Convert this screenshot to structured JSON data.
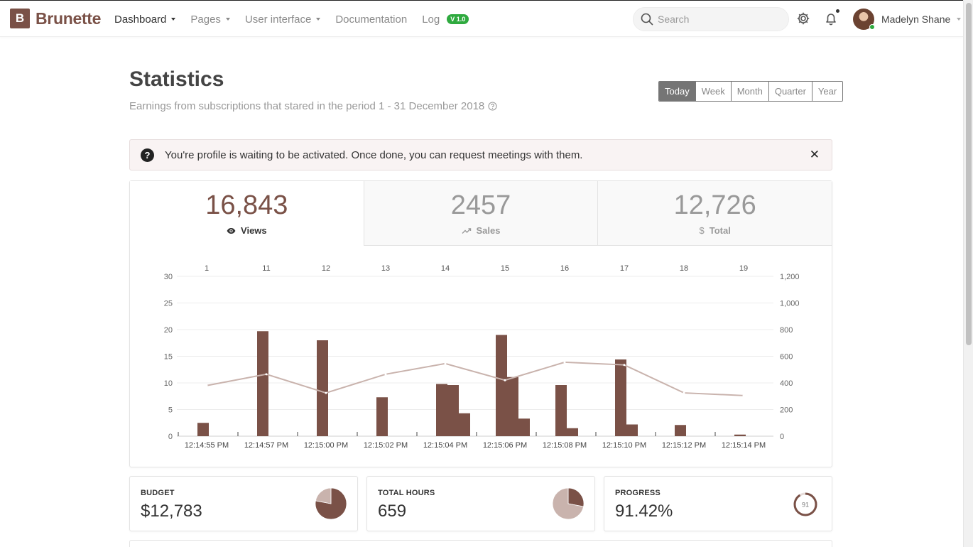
{
  "brand": {
    "logo_letter": "B",
    "name": "Brunette",
    "color": "#7a5147"
  },
  "nav": {
    "items": [
      {
        "label": "Dashboard",
        "dropdown": true,
        "active": true
      },
      {
        "label": "Pages",
        "dropdown": true,
        "active": false
      },
      {
        "label": "User interface",
        "dropdown": true,
        "active": false
      },
      {
        "label": "Documentation",
        "dropdown": false,
        "active": false
      },
      {
        "label": "Log",
        "dropdown": false,
        "active": false,
        "badge": "V 1.0"
      }
    ]
  },
  "search": {
    "placeholder": "Search",
    "value": ""
  },
  "user": {
    "name": "Madelyn Shane",
    "status": "online"
  },
  "icons": {
    "settings": "gear-icon",
    "notifications": "bell-icon",
    "search": "search-icon"
  },
  "page": {
    "title": "Statistics",
    "subtitle": "Earnings from subscriptions that stared in the period 1 - 31 December 2018"
  },
  "period": {
    "options": [
      "Today",
      "Week",
      "Month",
      "Quarter",
      "Year"
    ],
    "selected": "Today"
  },
  "alert": {
    "message": "You're profile is waiting to be activated. Once done, you can request meetings with them."
  },
  "stats_tabs": [
    {
      "value": "16,843",
      "label": "Views",
      "icon": "eye-icon",
      "active": true
    },
    {
      "value": "2457",
      "label": "Sales",
      "icon": "trending-up-icon",
      "active": false
    },
    {
      "value": "12,726",
      "label": "Total",
      "icon": "dollar-icon",
      "active": false
    }
  ],
  "chart_data": {
    "type": "bar",
    "title": "",
    "xlabel": "",
    "ylabel": "",
    "top_axis_labels": [
      "1",
      "11",
      "12",
      "13",
      "14",
      "15",
      "16",
      "17",
      "18",
      "19"
    ],
    "categories": [
      "12:14:55 PM",
      "12:14:57 PM",
      "12:15:00 PM",
      "12:15:02 PM",
      "12:15:04 PM",
      "12:15:06 PM",
      "12:15:08 PM",
      "12:15:10 PM",
      "12:15:12 PM",
      "12:15:14 PM"
    ],
    "ylim": [
      0,
      30
    ],
    "y_ticks": [
      0,
      5,
      10,
      15,
      20,
      25,
      30
    ],
    "y2lim": [
      0,
      1200
    ],
    "y2_ticks": [
      "0",
      "200",
      "400",
      "600",
      "800",
      "1,000",
      "1,200"
    ],
    "series": [
      {
        "type": "bar",
        "values": [
          2.5,
          19.7,
          18,
          7.3,
          9.8,
          19,
          9.6,
          14.4,
          2.1,
          0.3
        ]
      },
      {
        "type": "bar",
        "values": [
          null,
          null,
          null,
          null,
          9.6,
          11.1,
          1.5,
          2.2,
          null,
          null
        ]
      },
      {
        "type": "bar",
        "values": [
          null,
          null,
          null,
          null,
          4.3,
          3.3,
          null,
          null,
          null,
          null
        ]
      },
      {
        "type": "line",
        "axis": "y2",
        "values": [
          380,
          465,
          325,
          465,
          545,
          420,
          555,
          535,
          325,
          305
        ]
      }
    ],
    "grid": true,
    "colors": {
      "bars": "#7a5147",
      "line": "#c9b3ad"
    }
  },
  "mini_cards": [
    {
      "label": "BUDGET",
      "value": "$12,783",
      "chart": "pie",
      "fractions": [
        0.78,
        0.22
      ]
    },
    {
      "label": "TOTAL HOURS",
      "value": "659",
      "chart": "pie",
      "fractions": [
        0.28,
        0.72
      ]
    },
    {
      "label": "PROGRESS",
      "value": "91.42%",
      "chart": "ring",
      "ring_value": "91",
      "progress": 0.9142
    }
  ]
}
